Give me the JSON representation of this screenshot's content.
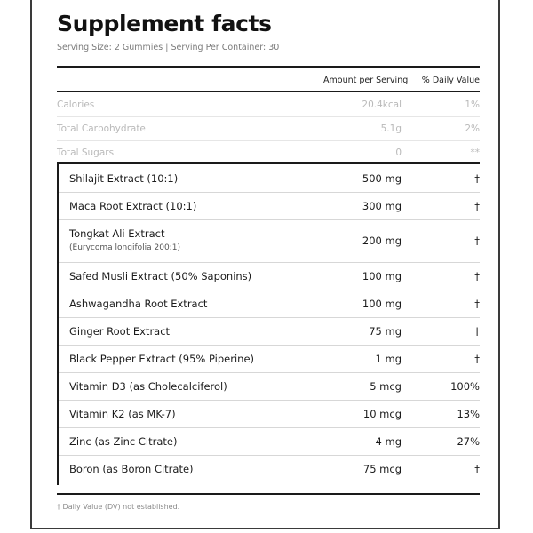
{
  "panel": {
    "title": "Supplement facts",
    "serving_text": "Serving Size: 2 Gummies  |  Serving Per Container: 30",
    "col_amount": "Amount per Serving",
    "col_dv": "% Daily Value"
  },
  "faded_rows": [
    {
      "name": "Calories",
      "amount": "20.4kcal",
      "dv": "1%"
    },
    {
      "name": "Total Carbohydrate",
      "amount": "5.1g",
      "dv": "2%"
    },
    {
      "name": "Total Sugars",
      "amount": "0",
      "dv": "**"
    }
  ],
  "ingredients": [
    {
      "name": "Shilajit Extract (10:1)",
      "sub": "",
      "amount": "500 mg",
      "dv": "†"
    },
    {
      "name": "Maca Root Extract (10:1)",
      "sub": "",
      "amount": "300 mg",
      "dv": "†"
    },
    {
      "name": "Tongkat Ali Extract",
      "sub": "(Eurycoma longifolia 200:1)",
      "amount": "200 mg",
      "dv": "†"
    },
    {
      "name": "Safed Musli Extract (50% Saponins)",
      "sub": "",
      "amount": "100 mg",
      "dv": "†"
    },
    {
      "name": "Ashwagandha Root Extract",
      "sub": "",
      "amount": "100 mg",
      "dv": "†"
    },
    {
      "name": "Ginger Root Extract",
      "sub": "",
      "amount": "75 mg",
      "dv": "†"
    },
    {
      "name": "Black Pepper Extract (95% Piperine)",
      "sub": "",
      "amount": "1 mg",
      "dv": "†"
    },
    {
      "name": "Vitamin D3 (as Cholecalciferol)",
      "sub": "",
      "amount": "5 mcg",
      "dv": "100%"
    },
    {
      "name": "Vitamin K2 (as MK-7)",
      "sub": "",
      "amount": "10 mcg",
      "dv": "13%"
    },
    {
      "name": "Zinc (as Zinc Citrate)",
      "sub": "",
      "amount": "4 mg",
      "dv": "27%"
    },
    {
      "name": "Boron (as Boron Citrate)",
      "sub": "",
      "amount": "75 mcg",
      "dv": "†"
    }
  ],
  "footnote": "† Daily Value (DV) not established."
}
